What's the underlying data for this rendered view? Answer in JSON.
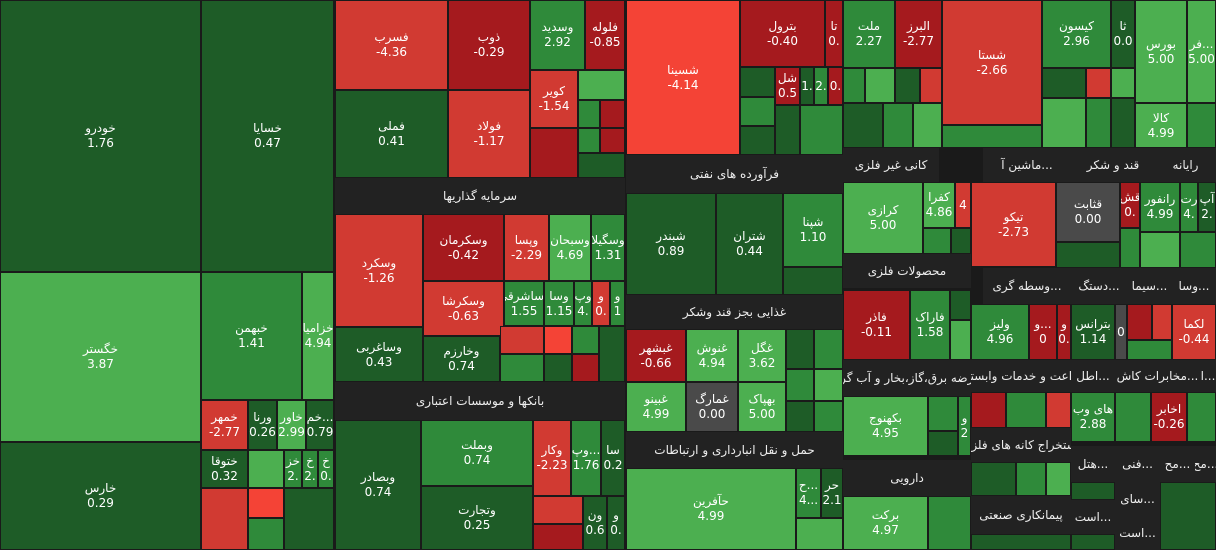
{
  "colors": {
    "dark_green": "#1e5c27",
    "mid_green": "#2f8a3a",
    "light_green": "#4caf50",
    "gray": "#4a4a4a",
    "dark_red": "#a51a1e",
    "mid_red": "#d13a32",
    "light_red": "#f44336",
    "header": "#222222"
  },
  "sectors": [
    "سرمایه گذاریها",
    "بانکها و موسسات اعتباری",
    "فرآورده های نفتی",
    "غذایی بجز قند وشکر",
    "حمل و نقل انبارداری و ارتباطات",
    "کانی غیر فلزی",
    "ماشین آ...",
    "قند و شکر",
    "رایانه",
    "محصولات فلزی",
    "وسطه گری...",
    "دستگ...",
    "سیما...",
    "وسا...",
    "راعت و خدمات وابسته",
    "عرضه برق،گاز،بخار و آب گرم",
    "اطل...",
    "مخابرات کاش...",
    "ا...",
    "استخراج کانه های فلزی",
    "دارویی",
    "هتل...",
    "فنی...",
    "مح...",
    "سای...",
    "مح...",
    "پیمانکاری صنعتی",
    "است...",
    "است..."
  ],
  "tiles": [
    {
      "name": "خودرو",
      "value": "1.76"
    },
    {
      "name": "خسایا",
      "value": "0.47"
    },
    {
      "name": "خگستر",
      "value": "3.87"
    },
    {
      "name": "خبهمن",
      "value": "1.41"
    },
    {
      "name": "خزامیا",
      "value": "4.94"
    },
    {
      "name": "خمهر",
      "value": "-2.77"
    },
    {
      "name": "ورنا",
      "value": "0.26"
    },
    {
      "name": "خاور",
      "value": "2.99"
    },
    {
      "name": "خم...",
      "value": "0.79"
    },
    {
      "name": "خارس",
      "value": "0.29"
    },
    {
      "name": "ختوقا",
      "value": "0.32"
    },
    {
      "name": "خز",
      "value": "2."
    },
    {
      "name": "خ",
      "value": "2."
    },
    {
      "name": "خ",
      "value": "0."
    },
    {
      "name": "فسرب",
      "value": "-4.36"
    },
    {
      "name": "ذوب",
      "value": "-0.29"
    },
    {
      "name": "وسدید",
      "value": "2.92"
    },
    {
      "name": "فلوله",
      "value": "-0.85"
    },
    {
      "name": "فملی",
      "value": "0.41"
    },
    {
      "name": "کویر",
      "value": "-1.54"
    },
    {
      "name": "فولاد",
      "value": "-1.17"
    },
    {
      "name": "وسکرد",
      "value": "-1.26"
    },
    {
      "name": "وسکرمان",
      "value": "-0.42"
    },
    {
      "name": "وپسا",
      "value": "-2.29"
    },
    {
      "name": "وسبحان",
      "value": "4.69"
    },
    {
      "name": "وسگیلا",
      "value": "1.31"
    },
    {
      "name": "وساغربی",
      "value": "0.43"
    },
    {
      "name": "وسکرشا",
      "value": "-0.63"
    },
    {
      "name": "وساشرقی",
      "value": "1.55"
    },
    {
      "name": "وسا",
      "value": "1.15"
    },
    {
      "name": "وپ",
      "value": "4."
    },
    {
      "name": "و",
      "value": "0."
    },
    {
      "name": "و",
      "value": "1"
    },
    {
      "name": "وخارزم",
      "value": "0.74"
    },
    {
      "name": "وبصادر",
      "value": "0.74"
    },
    {
      "name": "وبملت",
      "value": "0.74"
    },
    {
      "name": "وکار",
      "value": "-2.23"
    },
    {
      "name": "وپ...",
      "value": "1.76"
    },
    {
      "name": "سا",
      "value": "0.2"
    },
    {
      "name": "وتجارت",
      "value": "0.25"
    },
    {
      "name": "ون",
      "value": "0.6"
    },
    {
      "name": "و",
      "value": "0."
    },
    {
      "name": "شسینا",
      "value": "-4.14"
    },
    {
      "name": "بترول",
      "value": "-0.40"
    },
    {
      "name": "تا",
      "value": "0."
    },
    {
      "name": "شل",
      "value": "0.5"
    },
    {
      "name": "1.",
      "value": ""
    },
    {
      "name": "2.",
      "value": ""
    },
    {
      "name": "0.",
      "value": ""
    },
    {
      "name": "شبندر",
      "value": "0.89"
    },
    {
      "name": "شتران",
      "value": "0.44"
    },
    {
      "name": "شپنا",
      "value": "1.10"
    },
    {
      "name": "غبشهر",
      "value": "-0.66"
    },
    {
      "name": "غنوش",
      "value": "4.94"
    },
    {
      "name": "غگل",
      "value": "3.62"
    },
    {
      "name": "غبینو",
      "value": "4.99"
    },
    {
      "name": "غمارگ",
      "value": "0.00"
    },
    {
      "name": "بهپاک",
      "value": "5.00"
    },
    {
      "name": "حآفرین",
      "value": "4.99"
    },
    {
      "name": "ح...",
      "value": "4..."
    },
    {
      "name": "حر",
      "value": "2.1"
    },
    {
      "name": "ملت",
      "value": "2.27"
    },
    {
      "name": "البرز",
      "value": "-2.77"
    },
    {
      "name": "شستا",
      "value": "-2.66"
    },
    {
      "name": "کیسون",
      "value": "2.96"
    },
    {
      "name": "ثا",
      "value": "0.0"
    },
    {
      "name": "بورس",
      "value": "5.00"
    },
    {
      "name": "فر...",
      "value": "5.00"
    },
    {
      "name": "کالا",
      "value": "4.99"
    },
    {
      "name": "کرازی",
      "value": "5.00"
    },
    {
      "name": "کفرا",
      "value": "4.86"
    },
    {
      "name": "4",
      "value": ""
    },
    {
      "name": "تیکو",
      "value": "-2.73"
    },
    {
      "name": "قثابت",
      "value": "0.00"
    },
    {
      "name": "قش",
      "value": "0."
    },
    {
      "name": "رانفور",
      "value": "4.99"
    },
    {
      "name": "رت",
      "value": "4."
    },
    {
      "name": "آپ",
      "value": "2."
    },
    {
      "name": "فاذر",
      "value": "-0.11"
    },
    {
      "name": "فاراک",
      "value": "1.58"
    },
    {
      "name": "ولیز",
      "value": "4.96"
    },
    {
      "name": "و...",
      "value": "0"
    },
    {
      "name": "و",
      "value": "0."
    },
    {
      "name": "بترانس",
      "value": "1.14"
    },
    {
      "name": "0",
      "value": ""
    },
    {
      "name": "لکما",
      "value": "-0.44"
    },
    {
      "name": "بکهنوج",
      "value": "4.95"
    },
    {
      "name": "و",
      "value": "2"
    },
    {
      "name": "های وب",
      "value": "2.88"
    },
    {
      "name": "اخابر",
      "value": "-0.26"
    },
    {
      "name": "برکت",
      "value": "4.97"
    }
  ]
}
